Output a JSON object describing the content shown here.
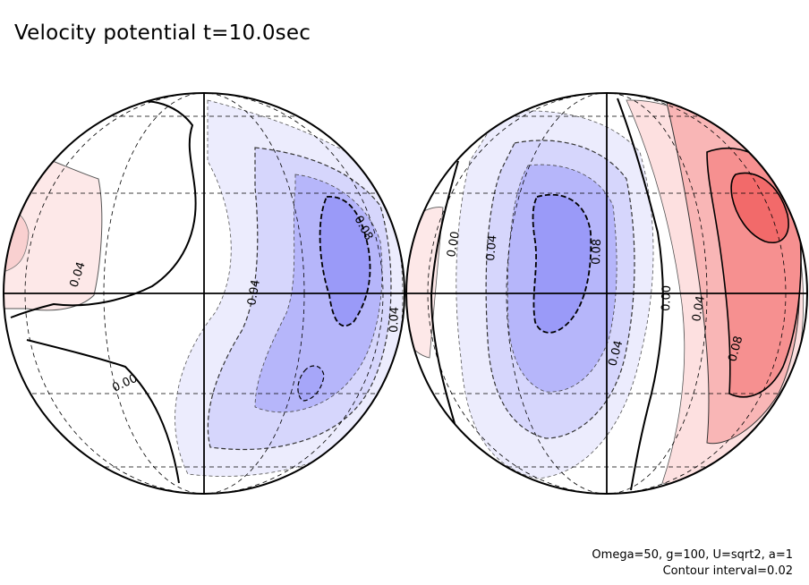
{
  "title": "Velocity potential t=10.0sec",
  "footer": {
    "params": "Omega=50, g=100, U=sqrt2, a=1",
    "contour_interval": "Contour interval=0.02"
  },
  "colors": {
    "positive_light": "#fde8e8",
    "positive_mid": "#f9b6b6",
    "positive_dark": "#f26a6a",
    "negative_light": "#ececfd",
    "negative_mid": "#c9c9fb",
    "negative_dark": "#9a9af8"
  },
  "left_hemisphere": {
    "labels": [
      "0.04",
      "0.00",
      "0.04",
      "0.08",
      "0.04"
    ]
  },
  "right_hemisphere": {
    "labels": [
      "0.00",
      "0.04",
      "0.08",
      "0.04",
      "0.00",
      "0.04",
      "0.08"
    ]
  }
}
